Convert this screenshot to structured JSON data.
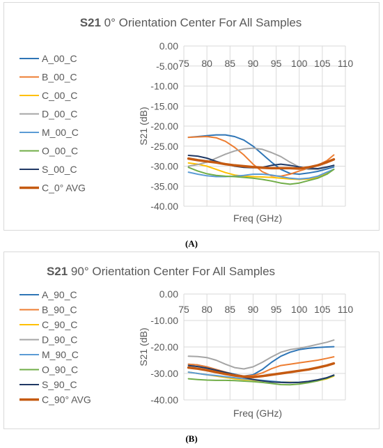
{
  "chart_data": [
    {
      "type": "line",
      "title_bold": "S21",
      "title_rest": "0° Orientation Center For All Samples",
      "xlabel": "Freq (GHz)",
      "ylabel": "S21 (dB)",
      "xlim": [
        75,
        110
      ],
      "ylim": [
        -40,
        0
      ],
      "xticks": [
        "75",
        "80",
        "85",
        "90",
        "95",
        "100",
        "105",
        "110"
      ],
      "yticks": [
        "0.00",
        "-5.00",
        "-10.00",
        "-15.00",
        "-20.00",
        "-25.00",
        "-30.00",
        "-35.00",
        "-40.00"
      ],
      "grid": true,
      "legend_position": "left",
      "caption": "(A)",
      "series": [
        {
          "name": "A_00_C",
          "color": "#2e75b6",
          "width": 2,
          "x": [
            76,
            78,
            80,
            82,
            84,
            86,
            88,
            90,
            92,
            94,
            96,
            98,
            100,
            102,
            104,
            106,
            107.5
          ],
          "y": [
            -22.8,
            -22.6,
            -22.4,
            -22.2,
            -22.2,
            -22.6,
            -23.5,
            -25,
            -27,
            -29,
            -30.8,
            -31.8,
            -32,
            -31.7,
            -31.3,
            -30.7,
            -30.2
          ]
        },
        {
          "name": "B_00_C",
          "color": "#ed7d31",
          "width": 2,
          "x": [
            76,
            78,
            80,
            82,
            84,
            86,
            88,
            90,
            92,
            94,
            96,
            98,
            100,
            102,
            104,
            106,
            107.5
          ],
          "y": [
            -22.8,
            -22.7,
            -22.6,
            -22.9,
            -23.8,
            -25.3,
            -27.2,
            -29.5,
            -31.4,
            -32.4,
            -32.5,
            -32,
            -31.2,
            -30.5,
            -29.8,
            -28.6,
            -27.2
          ]
        },
        {
          "name": "C_00_C",
          "color": "#ffc000",
          "width": 2,
          "x": [
            76,
            78,
            80,
            82,
            84,
            86,
            88,
            90,
            92,
            94,
            96,
            98,
            100,
            102,
            104,
            106,
            107.5
          ],
          "y": [
            -29.2,
            -29.5,
            -30,
            -30.8,
            -31.6,
            -32.2,
            -32.5,
            -32.6,
            -32.7,
            -32.8,
            -33,
            -33.2,
            -33.3,
            -33.2,
            -32.8,
            -31.8,
            -30.8
          ]
        },
        {
          "name": "D_00_C",
          "color": "#a5a5a5",
          "width": 2,
          "x": [
            76,
            78,
            80,
            82,
            84,
            86,
            88,
            90,
            92,
            94,
            96,
            98,
            100,
            102,
            104,
            106,
            107.5
          ],
          "y": [
            -30,
            -29.6,
            -29,
            -28,
            -27,
            -26.2,
            -25.7,
            -25.5,
            -25.8,
            -26.6,
            -27.6,
            -29,
            -30.2,
            -30.8,
            -30.8,
            -30.3,
            -29.8
          ]
        },
        {
          "name": "M_00_C",
          "color": "#5b9bd5",
          "width": 2,
          "x": [
            76,
            78,
            80,
            82,
            84,
            86,
            88,
            90,
            92,
            94,
            96,
            98,
            100,
            102,
            104,
            106,
            107.5
          ],
          "y": [
            -31.5,
            -32,
            -32.4,
            -32.6,
            -32.6,
            -32.5,
            -32.3,
            -32,
            -32,
            -32.2,
            -32.6,
            -33,
            -33.2,
            -33,
            -32.5,
            -31.5,
            -30.8
          ]
        },
        {
          "name": "O_00_C",
          "color": "#70ad47",
          "width": 2,
          "x": [
            76,
            78,
            80,
            82,
            84,
            86,
            88,
            90,
            92,
            94,
            96,
            98,
            100,
            102,
            104,
            106,
            107.5
          ],
          "y": [
            -30.3,
            -31.2,
            -31.9,
            -32.3,
            -32.5,
            -32.6,
            -32.8,
            -33,
            -33.3,
            -33.7,
            -34.2,
            -34.5,
            -34.2,
            -33.6,
            -33,
            -32,
            -30.8
          ]
        },
        {
          "name": "S_00_C",
          "color": "#1f3864",
          "width": 2,
          "x": [
            76,
            78,
            80,
            82,
            84,
            86,
            88,
            90,
            92,
            94,
            96,
            98,
            100,
            102,
            104,
            106,
            107.5
          ],
          "y": [
            -27.3,
            -27.5,
            -28,
            -28.8,
            -29.5,
            -30,
            -30.3,
            -30.4,
            -30.3,
            -29.8,
            -29.5,
            -29.8,
            -30.2,
            -30.5,
            -30.6,
            -30.2,
            -29.8
          ]
        },
        {
          "name": "C_0° AVG",
          "color": "#c55a11",
          "width": 3.5,
          "x": [
            76,
            78,
            80,
            82,
            84,
            86,
            88,
            90,
            92,
            94,
            96,
            98,
            100,
            102,
            104,
            106,
            107.5
          ],
          "y": [
            -28.1,
            -28.5,
            -28.8,
            -29.1,
            -29.5,
            -29.8,
            -30,
            -30.2,
            -30.4,
            -30.5,
            -30.5,
            -30.5,
            -30.6,
            -30.3,
            -29.8,
            -29,
            -28.3
          ]
        }
      ]
    },
    {
      "type": "line",
      "title_bold": "S21",
      "title_rest": "90° Orientation Center For All Samples",
      "xlabel": "Freq (GHz)",
      "ylabel": "S21 (dB)",
      "xlim": [
        75,
        110
      ],
      "ylim": [
        -40,
        0
      ],
      "xticks": [
        "75",
        "80",
        "85",
        "90",
        "95",
        "100",
        "105",
        "110"
      ],
      "yticks": [
        "0.00",
        "-10.00",
        "-20.00",
        "-30.00",
        "-40.00"
      ],
      "grid": true,
      "legend_position": "left",
      "caption": "(B)",
      "series": [
        {
          "name": "A_90_C",
          "color": "#2e75b6",
          "width": 2,
          "x": [
            76,
            78,
            80,
            82,
            84,
            86,
            88,
            90,
            92,
            94,
            96,
            98,
            100,
            102,
            104,
            106,
            107.5
          ],
          "y": [
            -26.5,
            -26.8,
            -27.5,
            -28.5,
            -29.5,
            -30.3,
            -31,
            -30.5,
            -28.5,
            -25.8,
            -23.5,
            -22,
            -21,
            -20.5,
            -20.2,
            -20,
            -19.9
          ]
        },
        {
          "name": "B_90_C",
          "color": "#ed7d31",
          "width": 2,
          "x": [
            76,
            78,
            80,
            82,
            84,
            86,
            88,
            90,
            92,
            94,
            96,
            98,
            100,
            102,
            104,
            106,
            107.5
          ],
          "y": [
            -26.5,
            -26.8,
            -27.5,
            -28.5,
            -29.5,
            -30.5,
            -31,
            -30.8,
            -29.8,
            -28.2,
            -27,
            -26.5,
            -26,
            -25.5,
            -25,
            -24.3,
            -23.7
          ]
        },
        {
          "name": "C_90_C",
          "color": "#ffc000",
          "width": 2,
          "x": [
            76,
            78,
            80,
            82,
            84,
            86,
            88,
            90,
            92,
            94,
            96,
            98,
            100,
            102,
            104,
            106,
            107.5
          ],
          "y": [
            -29.5,
            -30,
            -30.5,
            -31,
            -31.5,
            -32,
            -32.3,
            -32.5,
            -32.8,
            -33,
            -33.2,
            -33.3,
            -33.4,
            -33.2,
            -32.8,
            -32,
            -31
          ]
        },
        {
          "name": "D_90_C",
          "color": "#a5a5a5",
          "width": 2,
          "x": [
            76,
            78,
            80,
            82,
            84,
            86,
            88,
            90,
            92,
            94,
            96,
            98,
            100,
            102,
            104,
            106,
            107.5
          ],
          "y": [
            -23.5,
            -23.6,
            -24,
            -25,
            -26.5,
            -27.8,
            -28.3,
            -27.5,
            -25.8,
            -23.8,
            -22,
            -21,
            -20.5,
            -19.8,
            -19,
            -18.2,
            -17.4
          ]
        },
        {
          "name": "M_90_C",
          "color": "#5b9bd5",
          "width": 2,
          "x": [
            76,
            78,
            80,
            82,
            84,
            86,
            88,
            90,
            92,
            94,
            96,
            98,
            100,
            102,
            104,
            106,
            107.5
          ],
          "y": [
            -29.5,
            -30,
            -30.5,
            -30.8,
            -31.2,
            -31.6,
            -32,
            -32.3,
            -32.6,
            -32.9,
            -33.2,
            -33.4,
            -33.3,
            -33,
            -32.5,
            -31.6,
            -30.8
          ]
        },
        {
          "name": "O_90_C",
          "color": "#70ad47",
          "width": 2,
          "x": [
            76,
            78,
            80,
            82,
            84,
            86,
            88,
            90,
            92,
            94,
            96,
            98,
            100,
            102,
            104,
            106,
            107.5
          ],
          "y": [
            -32,
            -32.3,
            -32.5,
            -32.6,
            -32.6,
            -32.7,
            -32.9,
            -33.1,
            -33.4,
            -33.8,
            -34.2,
            -34.3,
            -34,
            -33.5,
            -32.8,
            -31.8,
            -30.8
          ]
        },
        {
          "name": "S_90_C",
          "color": "#1f3864",
          "width": 2,
          "x": [
            76,
            78,
            80,
            82,
            84,
            86,
            88,
            90,
            92,
            94,
            96,
            98,
            100,
            102,
            104,
            106,
            107.5
          ],
          "y": [
            -27,
            -27.4,
            -28,
            -28.8,
            -29.6,
            -30.5,
            -31.5,
            -32.3,
            -32.8,
            -33.2,
            -33.4,
            -33.5,
            -33.4,
            -33,
            -32.4,
            -31.6,
            -30.6
          ]
        },
        {
          "name": "C_90° AVG",
          "color": "#c55a11",
          "width": 3.5,
          "x": [
            76,
            78,
            80,
            82,
            84,
            86,
            88,
            90,
            92,
            94,
            96,
            98,
            100,
            102,
            104,
            106,
            107.5
          ],
          "y": [
            -27.8,
            -28.2,
            -28.8,
            -29.5,
            -30.2,
            -30.8,
            -31.2,
            -31.4,
            -31,
            -30.5,
            -30,
            -29.5,
            -29,
            -28.5,
            -27.8,
            -27,
            -26.2
          ]
        }
      ]
    }
  ]
}
